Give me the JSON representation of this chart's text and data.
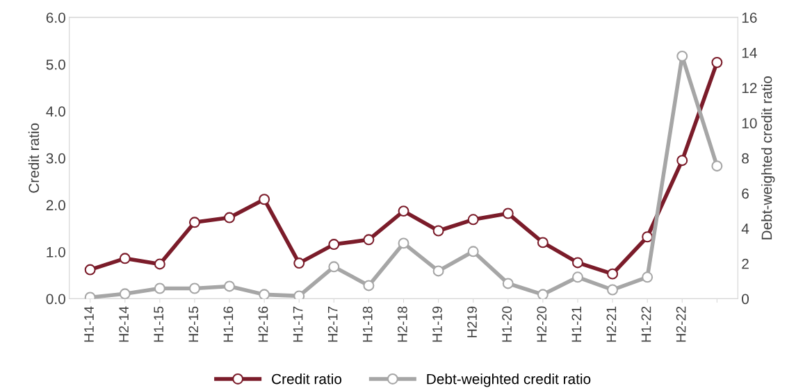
{
  "chart_data": {
    "type": "line",
    "ylabel": "Credit ratio",
    "y2label": "Debt-weighted credit ratio",
    "categories": [
      "H1-14",
      "H2-14",
      "H1-15",
      "H2-15",
      "H1-16",
      "H2-16",
      "H1-17",
      "H2-17",
      "H1-18",
      "H2-18",
      "H1-19",
      "H219",
      "H1-20",
      "H2-20",
      "H1-21",
      "H2-21",
      "H1-22",
      "H2-22",
      null
    ],
    "series": [
      {
        "name": "Credit ratio",
        "color": "#7b1c2a",
        "values": [
          0.62,
          0.86,
          0.74,
          1.63,
          1.73,
          2.12,
          0.76,
          1.16,
          1.26,
          1.87,
          1.45,
          1.69,
          1.82,
          1.2,
          0.77,
          0.53,
          1.32,
          2.95,
          5.04
        ]
      },
      {
        "name": "Debt-weighted credit ratio",
        "color": "#a6a6a6",
        "axis": "y2",
        "values": [
          0.08,
          0.28,
          0.59,
          0.59,
          0.71,
          0.24,
          0.16,
          1.82,
          0.75,
          3.16,
          1.58,
          2.69,
          0.87,
          0.24,
          1.23,
          0.51,
          1.23,
          13.8,
          7.55
        ]
      }
    ],
    "ylim": [
      0,
      6
    ],
    "yticks": [
      {
        "value": 0,
        "label": "0.0"
      },
      {
        "value": 1,
        "label": "1.0"
      },
      {
        "value": 2,
        "label": "2.0"
      },
      {
        "value": 3,
        "label": "3.0"
      },
      {
        "value": 4,
        "label": "4.0"
      },
      {
        "value": 5,
        "label": "5.0"
      },
      {
        "value": 6,
        "label": "6.0"
      }
    ],
    "y2lim": [
      0,
      16
    ],
    "y2ticks": [
      0,
      2,
      4,
      6,
      8,
      10,
      12,
      14,
      16
    ],
    "marker": "circle",
    "line_style": "solid",
    "grid": false,
    "legend": "bottom"
  }
}
